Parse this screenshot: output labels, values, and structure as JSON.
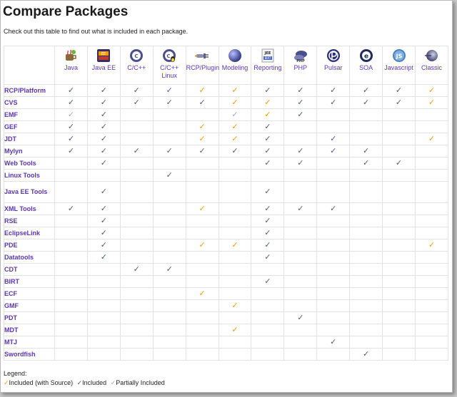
{
  "page": {
    "title": "Compare Packages",
    "intro": "Check out this table to find out what is included in each package."
  },
  "colors": {
    "source": "#f29a0a",
    "included": "#4a5a7a",
    "partial": "#a8a4c8",
    "link": "#5a35b0"
  },
  "marks": {
    "S": "✓",
    "I": "✓",
    "P": "✓"
  },
  "packages": [
    {
      "label": "Java",
      "icon": "java-cup-icon"
    },
    {
      "label": "Java EE",
      "icon": "java-ee-icon"
    },
    {
      "label": "C/C++",
      "icon": "cdt-icon"
    },
    {
      "label": "C/C++ Linux",
      "icon": "cdt-linux-icon"
    },
    {
      "label": "RCP/Plugin",
      "icon": "plug-icon"
    },
    {
      "label": "Modeling",
      "icon": "modeling-sphere-icon"
    },
    {
      "label": "Reporting",
      "icon": "birt-icon"
    },
    {
      "label": "PHP",
      "icon": "php-icon"
    },
    {
      "label": "Pulsar",
      "icon": "pulsar-icon"
    },
    {
      "label": "SOA",
      "icon": "soa-icon"
    },
    {
      "label": "Javascript",
      "icon": "javascript-icon"
    },
    {
      "label": "Classic",
      "icon": "classic-eclipse-icon"
    }
  ],
  "rows": [
    {
      "name": "RCP/Platform",
      "cells": [
        "I",
        "I",
        "I",
        "I",
        "S",
        "S",
        "I",
        "I",
        "I",
        "I",
        "I",
        "S"
      ]
    },
    {
      "name": "CVS",
      "cells": [
        "I",
        "I",
        "I",
        "I",
        "I",
        "S",
        "S",
        "I",
        "I",
        "I",
        "I",
        "S"
      ]
    },
    {
      "name": "EMF",
      "cells": [
        "P",
        "I",
        "",
        "",
        "",
        "P",
        "S",
        "I",
        "",
        "",
        "",
        ""
      ]
    },
    {
      "name": "GEF",
      "cells": [
        "I",
        "I",
        "",
        "",
        "S",
        "S",
        "I",
        "",
        "",
        "",
        "",
        ""
      ]
    },
    {
      "name": "JDT",
      "cells": [
        "I",
        "I",
        "",
        "",
        "S",
        "S",
        "I",
        "",
        "I",
        "",
        "",
        "S"
      ]
    },
    {
      "name": "Mylyn",
      "cells": [
        "I",
        "I",
        "I",
        "I",
        "I",
        "I",
        "I",
        "I",
        "I",
        "I",
        "",
        ""
      ]
    },
    {
      "name": "Web Tools",
      "cells": [
        "",
        "I",
        "",
        "",
        "",
        "",
        "I",
        "I",
        "",
        "I",
        "I",
        ""
      ]
    },
    {
      "name": "Linux Tools",
      "cells": [
        "",
        "",
        "",
        "I",
        "",
        "",
        "",
        "",
        "",
        "",
        "",
        ""
      ]
    },
    {
      "name": "Java EE Tools",
      "cells": [
        "",
        "I",
        "",
        "",
        "",
        "",
        "I",
        "",
        "",
        "",
        "",
        ""
      ]
    },
    {
      "name": "XML Tools",
      "cells": [
        "I",
        "I",
        "",
        "",
        "S",
        "",
        "I",
        "I",
        "I",
        "",
        "",
        ""
      ]
    },
    {
      "name": "RSE",
      "cells": [
        "",
        "I",
        "",
        "",
        "",
        "",
        "I",
        "",
        "",
        "",
        "",
        ""
      ]
    },
    {
      "name": "EclipseLink",
      "cells": [
        "",
        "I",
        "",
        "",
        "",
        "",
        "I",
        "",
        "",
        "",
        "",
        ""
      ]
    },
    {
      "name": "PDE",
      "cells": [
        "",
        "I",
        "",
        "",
        "S",
        "S",
        "I",
        "",
        "",
        "",
        "",
        "S"
      ]
    },
    {
      "name": "Datatools",
      "cells": [
        "",
        "I",
        "",
        "",
        "",
        "",
        "I",
        "",
        "",
        "",
        "",
        ""
      ]
    },
    {
      "name": "CDT",
      "cells": [
        "",
        "",
        "I",
        "I",
        "",
        "",
        "",
        "",
        "",
        "",
        "",
        ""
      ]
    },
    {
      "name": "BIRT",
      "cells": [
        "",
        "",
        "",
        "",
        "",
        "",
        "I",
        "",
        "",
        "",
        "",
        ""
      ]
    },
    {
      "name": "ECF",
      "cells": [
        "",
        "",
        "",
        "",
        "S",
        "",
        "",
        "",
        "",
        "",
        "",
        ""
      ]
    },
    {
      "name": "GMF",
      "cells": [
        "",
        "",
        "",
        "",
        "",
        "S",
        "",
        "",
        "",
        "",
        "",
        ""
      ]
    },
    {
      "name": "PDT",
      "cells": [
        "",
        "",
        "",
        "",
        "",
        "",
        "",
        "I",
        "",
        "",
        "",
        ""
      ]
    },
    {
      "name": "MDT",
      "cells": [
        "",
        "",
        "",
        "",
        "",
        "S",
        "",
        "",
        "",
        "",
        "",
        ""
      ]
    },
    {
      "name": "MTJ",
      "cells": [
        "",
        "",
        "",
        "",
        "",
        "",
        "",
        "",
        "I",
        "",
        "",
        ""
      ]
    },
    {
      "name": "Swordfish",
      "cells": [
        "",
        "",
        "",
        "",
        "",
        "",
        "",
        "",
        "",
        "I",
        "",
        ""
      ]
    }
  ],
  "legend": {
    "title": "Legend:",
    "source": "Included (with Source)",
    "included": "Included",
    "partial": "Partially Included"
  }
}
